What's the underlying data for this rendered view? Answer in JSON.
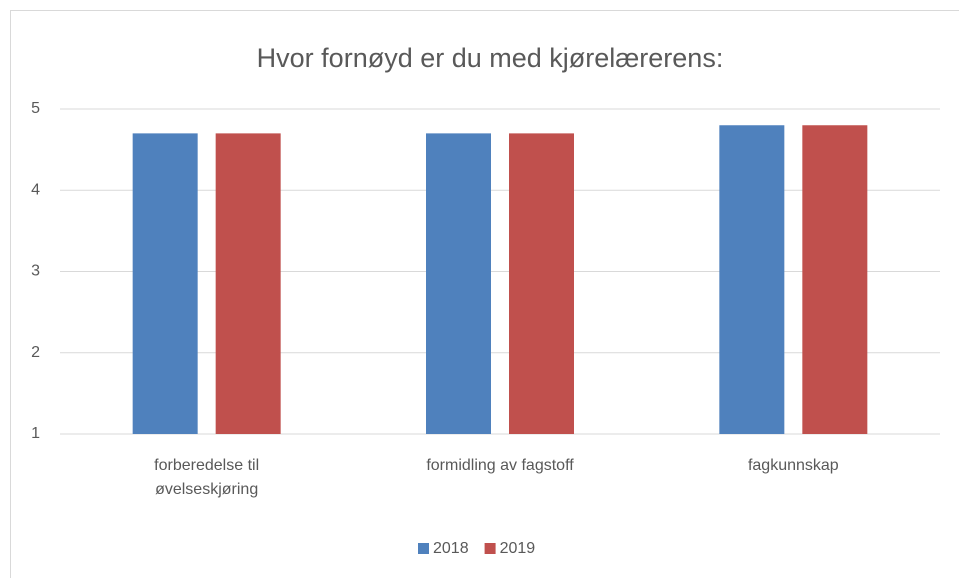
{
  "chart_data": {
    "type": "bar",
    "title": "Hvor fornøyd er du med kjørelærerens:",
    "categories": [
      "forberedelse til øvelseskjøring",
      "formidling av fagstoff",
      "fagkunnskap"
    ],
    "series": [
      {
        "name": "2018",
        "color": "#4f81bd",
        "values": [
          4.7,
          4.7,
          4.8
        ]
      },
      {
        "name": "2019",
        "color": "#c0504d",
        "values": [
          4.7,
          4.7,
          4.8
        ]
      }
    ],
    "ylim": [
      1,
      5
    ],
    "yticks": [
      1,
      2,
      3,
      4,
      5
    ],
    "grid": true,
    "legend": "bottom"
  }
}
